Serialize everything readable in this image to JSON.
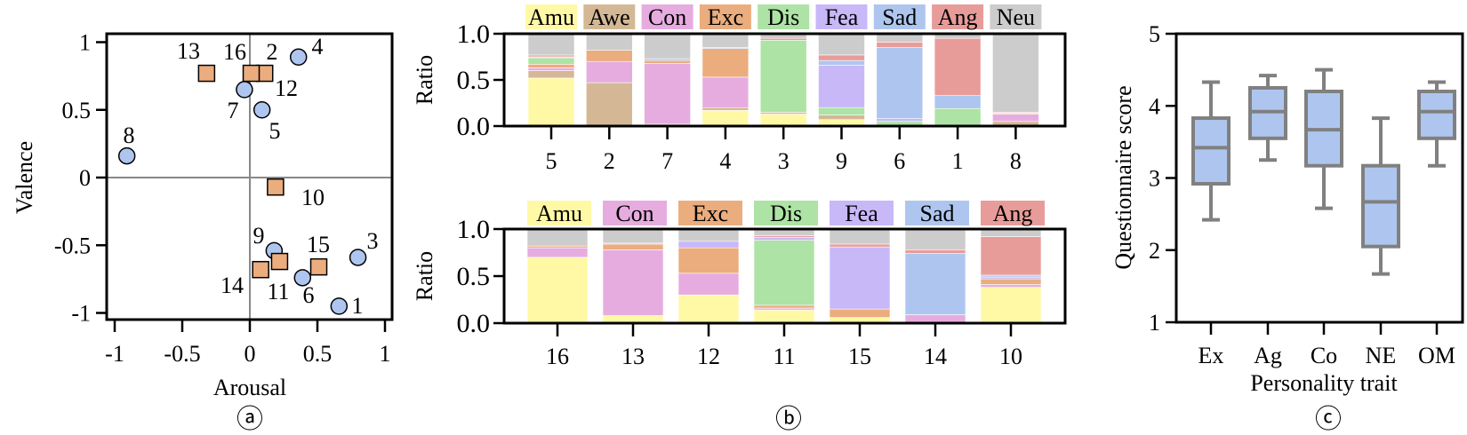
{
  "chart_data": [
    {
      "type": "scatter",
      "panel_label": "ⓐ",
      "xlabel": "Arousal",
      "ylabel": "Valence",
      "xlim": [
        -1.06,
        1.05
      ],
      "ylim": [
        -1.05,
        1.07
      ],
      "xticks": [
        "-1",
        "-0.5",
        "0",
        "0.5",
        "1"
      ],
      "xtick_values": [
        -1,
        -0.5,
        0,
        0.5,
        1
      ],
      "yticks": [
        "1",
        "0.5",
        "0",
        "-0.5",
        "-1"
      ],
      "ytick_values": [
        1,
        0.5,
        0,
        -0.5,
        -1
      ],
      "zero_lines": true,
      "series": [
        {
          "marker": "circle",
          "color": "#aec6ef",
          "points": [
            {
              "id": "2",
              "x": 0.06,
              "y": 0.77
            },
            {
              "id": "1",
              "x": 0.66,
              "y": -0.95
            },
            {
              "id": "3",
              "x": 0.8,
              "y": -0.59
            },
            {
              "id": "4",
              "x": 0.36,
              "y": 0.89
            },
            {
              "id": "5",
              "x": 0.09,
              "y": 0.5
            },
            {
              "id": "6",
              "x": 0.39,
              "y": -0.74
            },
            {
              "id": "7",
              "x": -0.04,
              "y": 0.65
            },
            {
              "id": "8",
              "x": -0.91,
              "y": 0.16
            },
            {
              "id": "9",
              "x": 0.18,
              "y": -0.54
            }
          ]
        },
        {
          "marker": "square",
          "color": "#ebad7e",
          "points": [
            {
              "id": "10",
              "x": 0.19,
              "y": -0.07
            },
            {
              "id": "11",
              "x": 0.22,
              "y": -0.62
            },
            {
              "id": "12",
              "x": 0.11,
              "y": 0.77
            },
            {
              "id": "13",
              "x": -0.32,
              "y": 0.77
            },
            {
              "id": "14",
              "x": 0.08,
              "y": -0.68
            },
            {
              "id": "15",
              "x": 0.51,
              "y": -0.66
            },
            {
              "id": "16",
              "x": 0.01,
              "y": 0.77
            }
          ]
        }
      ]
    },
    {
      "type": "bar",
      "stacked": true,
      "panel_label": "ⓑ",
      "ylabel": "Ratio",
      "ylim": [
        0,
        1
      ],
      "yticks": [
        "1.0",
        "0.5",
        "0.0"
      ],
      "ytick_values": [
        1,
        0.5,
        0
      ],
      "legend_position": "top",
      "categories": [
        "5",
        "2",
        "7",
        "4",
        "3",
        "9",
        "6",
        "1",
        "8"
      ],
      "series": [
        {
          "name": "Amu",
          "color": "#fff9a6",
          "values": [
            0.52,
            0,
            0,
            0.17,
            0.13,
            0.07,
            0.01,
            0,
            0
          ]
        },
        {
          "name": "Awe",
          "color": "#d4b896",
          "values": [
            0.08,
            0.47,
            0.02,
            0.03,
            0.02,
            0.05,
            0,
            0,
            0.05
          ]
        },
        {
          "name": "Con",
          "color": "#e6acdf",
          "values": [
            0.03,
            0.23,
            0.66,
            0.33,
            0,
            0,
            0,
            0,
            0.08
          ]
        },
        {
          "name": "Exc",
          "color": "#ebad7e",
          "values": [
            0.04,
            0.12,
            0.03,
            0.31,
            0,
            0,
            0,
            0,
            0.01
          ]
        },
        {
          "name": "Dis",
          "color": "#ade3a4",
          "values": [
            0.07,
            0,
            0,
            0,
            0.78,
            0.08,
            0.04,
            0.19,
            0
          ]
        },
        {
          "name": "Fea",
          "color": "#c8b8f8",
          "values": [
            0.01,
            0,
            0,
            0,
            0,
            0.46,
            0.03,
            0,
            0
          ]
        },
        {
          "name": "Sad",
          "color": "#aec6ef",
          "values": [
            0,
            0,
            0.02,
            0.01,
            0,
            0.05,
            0.77,
            0.14,
            0
          ]
        },
        {
          "name": "Ang",
          "color": "#e89c9a",
          "values": [
            0.02,
            0,
            0,
            0,
            0.02,
            0.06,
            0.06,
            0.62,
            0.01
          ]
        },
        {
          "name": "Neu",
          "color": "#cccccc",
          "values": [
            0.23,
            0.18,
            0.27,
            0.15,
            0.05,
            0.23,
            0.09,
            0.05,
            0.85
          ]
        }
      ]
    },
    {
      "type": "bar",
      "stacked": true,
      "ylabel": "Ratio",
      "ylim": [
        0,
        1
      ],
      "yticks": [
        "1.0",
        "0.5",
        "0.0"
      ],
      "ytick_values": [
        1,
        0.5,
        0
      ],
      "legend_position": "top",
      "categories": [
        "16",
        "13",
        "12",
        "11",
        "15",
        "14",
        "10"
      ],
      "series": [
        {
          "name": "Amu",
          "color": "#fff9a6",
          "values": [
            0.7,
            0.08,
            0.3,
            0.14,
            0.06,
            0,
            0.38
          ]
        },
        {
          "name": "Con",
          "color": "#e6acdf",
          "values": [
            0.1,
            0.7,
            0.23,
            0.02,
            0,
            0.09,
            0.03
          ]
        },
        {
          "name": "Exc",
          "color": "#ebad7e",
          "values": [
            0.02,
            0.06,
            0.27,
            0.03,
            0.09,
            0,
            0.06
          ]
        },
        {
          "name": "Dis",
          "color": "#ade3a4",
          "values": [
            0,
            0,
            0,
            0.69,
            0,
            0,
            0
          ]
        },
        {
          "name": "Fea",
          "color": "#c8b8f8",
          "values": [
            0,
            0,
            0.07,
            0.03,
            0.66,
            0,
            0.02
          ]
        },
        {
          "name": "Sad",
          "color": "#aec6ef",
          "values": [
            0,
            0,
            0,
            0,
            0,
            0.65,
            0.02
          ]
        },
        {
          "name": "Ang",
          "color": "#e89c9a",
          "values": [
            0,
            0.01,
            0,
            0.02,
            0.03,
            0.04,
            0.41
          ]
        },
        {
          "color": "#cccccc",
          "values": [
            0.18,
            0.15,
            0.13,
            0.07,
            0.16,
            0.22,
            0.08
          ]
        }
      ]
    },
    {
      "type": "box",
      "panel_label": "ⓒ",
      "xlabel": "Personality trait",
      "ylabel": "Questionnaire score",
      "ylim": [
        1,
        5
      ],
      "yticks": [
        "5",
        "4",
        "3",
        "2",
        "1"
      ],
      "ytick_values": [
        5,
        4,
        3,
        2,
        1
      ],
      "fill_color": "#aec6ef",
      "stroke_color": "#808080",
      "categories": [
        "Ex",
        "Ag",
        "Co",
        "NE",
        "OM"
      ],
      "boxes": [
        {
          "min": 2.42,
          "q1": 2.92,
          "median": 3.42,
          "q3": 3.83,
          "max": 4.33
        },
        {
          "min": 3.25,
          "q1": 3.55,
          "median": 3.92,
          "q3": 4.25,
          "max": 4.42
        },
        {
          "min": 2.58,
          "q1": 3.17,
          "median": 3.67,
          "q3": 4.2,
          "max": 4.5
        },
        {
          "min": 1.67,
          "q1": 2.05,
          "median": 2.67,
          "q3": 3.17,
          "max": 3.83
        },
        {
          "min": 3.17,
          "q1": 3.55,
          "median": 3.92,
          "q3": 4.2,
          "max": 4.33
        }
      ]
    }
  ]
}
